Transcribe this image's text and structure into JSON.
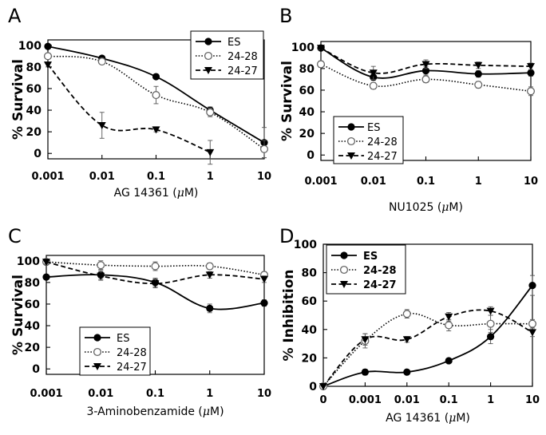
{
  "chart_data": [
    {
      "panel": "A",
      "type": "line",
      "ylabel": "% Survival",
      "xlabel": "AG 14361 (μM)",
      "x_ticks": [
        "0.001",
        "0.01",
        "0.1",
        "1",
        "10"
      ],
      "y_ticks": [
        "0",
        "20",
        "40",
        "60",
        "80",
        "100"
      ],
      "ylim": [
        -5,
        105
      ],
      "legend_position": "top-right",
      "series": [
        {
          "name": "ES",
          "marker": "filled-circle",
          "line": "solid",
          "values": [
            99,
            88,
            71,
            40,
            10
          ],
          "err": [
            1.5,
            1.5,
            2,
            3,
            14
          ]
        },
        {
          "name": "24-28",
          "marker": "open-circle",
          "line": "dotted",
          "values": [
            90,
            85,
            54,
            38,
            4
          ],
          "err": [
            2,
            2,
            8,
            4,
            8
          ]
        },
        {
          "name": "24-27",
          "marker": "filled-triangle-down",
          "line": "dashed",
          "values": [
            82,
            26,
            22,
            1,
            null
          ],
          "err": [
            2,
            12,
            2,
            11,
            null
          ]
        }
      ]
    },
    {
      "panel": "B",
      "type": "line",
      "ylabel": "% Survival",
      "xlabel": "NU1025 (μM)",
      "x_ticks": [
        "0.001",
        "0.01",
        "0.1",
        "1",
        "10"
      ],
      "y_ticks": [
        "0",
        "20",
        "40",
        "60",
        "80",
        "100"
      ],
      "ylim": [
        -5,
        105
      ],
      "legend_position": "bottom-left",
      "series": [
        {
          "name": "ES",
          "marker": "filled-circle",
          "line": "solid",
          "values": [
            99,
            72,
            78,
            75,
            76
          ],
          "err": [
            1.5,
            3,
            4,
            3,
            3
          ]
        },
        {
          "name": "24-28",
          "marker": "open-circle",
          "line": "dotted",
          "values": [
            84,
            64,
            70,
            65,
            59
          ],
          "err": [
            3,
            3,
            3,
            3,
            4
          ]
        },
        {
          "name": "24-27",
          "marker": "filled-triangle-down",
          "line": "dashed",
          "values": [
            99,
            76,
            84,
            83,
            82
          ],
          "err": [
            1.5,
            6,
            4,
            3,
            3
          ]
        }
      ]
    },
    {
      "panel": "C",
      "type": "line",
      "ylabel": "% Survival",
      "xlabel": "3-Aminobenzamide (μM)",
      "x_ticks": [
        "0.001",
        "0.01",
        "0.1",
        "1",
        "10"
      ],
      "y_ticks": [
        "0",
        "20",
        "40",
        "60",
        "80",
        "100"
      ],
      "ylim": [
        -5,
        105
      ],
      "legend_position": "bottom-left",
      "series": [
        {
          "name": "ES",
          "marker": "filled-circle",
          "line": "solid",
          "values": [
            85,
            87,
            80,
            56,
            61
          ],
          "err": [
            2,
            4,
            4,
            4,
            3
          ]
        },
        {
          "name": "24-28",
          "marker": "open-circle",
          "line": "dotted",
          "values": [
            99,
            96,
            95,
            95,
            87
          ],
          "err": [
            2,
            4,
            4,
            3,
            3
          ]
        },
        {
          "name": "24-27",
          "marker": "filled-triangle-down",
          "line": "dashed",
          "values": [
            99,
            86,
            79,
            87,
            83
          ],
          "err": [
            2,
            4,
            4,
            3,
            3
          ]
        }
      ]
    },
    {
      "panel": "D",
      "type": "line",
      "ylabel": "% Inhibition",
      "xlabel": "AG 14361 (μM)",
      "x_ticks": [
        "0",
        "0.001",
        "0.01",
        "0.1",
        "1",
        "10"
      ],
      "y_ticks": [
        "0",
        "20",
        "40",
        "60",
        "80",
        "100"
      ],
      "ylim": [
        0,
        100
      ],
      "legend_position": "top-left",
      "series": [
        {
          "name": "ES",
          "marker": "filled-circle",
          "line": "solid",
          "values": [
            0,
            10,
            10,
            18,
            35,
            71
          ],
          "err": [
            0,
            2,
            1.5,
            1.5,
            5,
            7
          ]
        },
        {
          "name": "24-28",
          "marker": "open-circle",
          "line": "dotted",
          "values": [
            0,
            32,
            51,
            43,
            44,
            44
          ],
          "err": [
            0,
            5,
            3,
            4,
            6,
            3
          ]
        },
        {
          "name": "24-27",
          "marker": "filled-triangle-down",
          "line": "dashed",
          "values": [
            0,
            33,
            33,
            49,
            53,
            38
          ],
          "err": [
            0,
            4,
            2,
            3,
            3,
            3
          ]
        }
      ]
    }
  ]
}
